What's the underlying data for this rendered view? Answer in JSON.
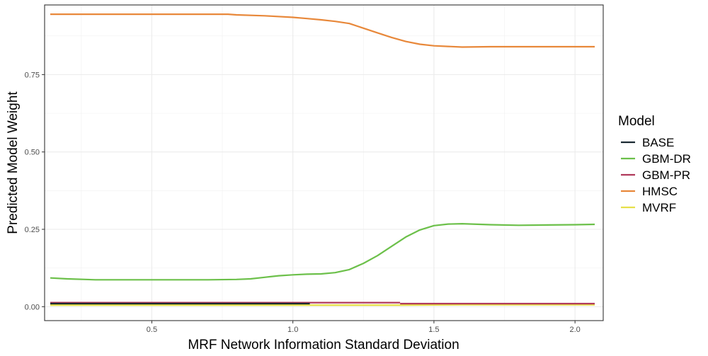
{
  "chart_data": {
    "type": "line",
    "title": "",
    "xlabel": "MRF Network Information Standard Deviation",
    "ylabel": "Predicted Model Weight",
    "xlim": [
      0.12,
      2.1
    ],
    "ylim": [
      -0.045,
      0.975
    ],
    "x_ticks": [
      0.5,
      1.0,
      1.5,
      2.0
    ],
    "x_tick_labels": [
      "0.5",
      "1.0",
      "1.5",
      "2.0"
    ],
    "y_ticks": [
      0.0,
      0.25,
      0.5,
      0.75
    ],
    "y_tick_labels": [
      "0.00",
      "0.25",
      "0.50",
      "0.75"
    ],
    "grid": true,
    "legend": {
      "title": "Model",
      "position": "right"
    },
    "series": [
      {
        "name": "BASE",
        "color": "#1b2a33",
        "points": [
          [
            0.14,
            0.01
          ],
          [
            0.5,
            0.01
          ],
          [
            0.8,
            0.01
          ],
          [
            1.06,
            0.01
          ]
        ]
      },
      {
        "name": "GBM-DR",
        "color": "#6cc04a",
        "points": [
          [
            0.14,
            0.093
          ],
          [
            0.2,
            0.09
          ],
          [
            0.3,
            0.087
          ],
          [
            0.4,
            0.087
          ],
          [
            0.5,
            0.087
          ],
          [
            0.6,
            0.087
          ],
          [
            0.7,
            0.087
          ],
          [
            0.8,
            0.088
          ],
          [
            0.85,
            0.09
          ],
          [
            0.9,
            0.095
          ],
          [
            0.95,
            0.1
          ],
          [
            1.0,
            0.103
          ],
          [
            1.05,
            0.105
          ],
          [
            1.1,
            0.106
          ],
          [
            1.15,
            0.11
          ],
          [
            1.2,
            0.12
          ],
          [
            1.25,
            0.14
          ],
          [
            1.3,
            0.165
          ],
          [
            1.35,
            0.195
          ],
          [
            1.4,
            0.225
          ],
          [
            1.45,
            0.248
          ],
          [
            1.5,
            0.262
          ],
          [
            1.55,
            0.267
          ],
          [
            1.6,
            0.268
          ],
          [
            1.7,
            0.265
          ],
          [
            1.8,
            0.263
          ],
          [
            1.9,
            0.264
          ],
          [
            2.0,
            0.265
          ],
          [
            2.07,
            0.266
          ]
        ]
      },
      {
        "name": "GBM-PR",
        "color": "#b03a5b",
        "points": [
          [
            0.14,
            0.013
          ],
          [
            0.5,
            0.013
          ],
          [
            1.0,
            0.013
          ],
          [
            1.38,
            0.013
          ]
        ]
      },
      {
        "name": "HMSC",
        "color": "#e8883a",
        "points": [
          [
            0.14,
            0.945
          ],
          [
            0.3,
            0.945
          ],
          [
            0.5,
            0.945
          ],
          [
            0.6,
            0.945
          ],
          [
            0.7,
            0.945
          ],
          [
            0.77,
            0.945
          ],
          [
            0.8,
            0.943
          ],
          [
            0.9,
            0.94
          ],
          [
            1.0,
            0.935
          ],
          [
            1.05,
            0.931
          ],
          [
            1.1,
            0.927
          ],
          [
            1.15,
            0.922
          ],
          [
            1.2,
            0.915
          ],
          [
            1.25,
            0.9
          ],
          [
            1.3,
            0.885
          ],
          [
            1.35,
            0.87
          ],
          [
            1.4,
            0.857
          ],
          [
            1.45,
            0.848
          ],
          [
            1.5,
            0.843
          ],
          [
            1.55,
            0.841
          ],
          [
            1.6,
            0.839
          ],
          [
            1.7,
            0.84
          ],
          [
            1.8,
            0.84
          ],
          [
            1.9,
            0.84
          ],
          [
            2.0,
            0.84
          ],
          [
            2.07,
            0.84
          ]
        ]
      },
      {
        "name": "MVRF",
        "color": "#e6e04a",
        "points": [
          [
            0.14,
            0.005
          ],
          [
            0.8,
            0.005
          ],
          [
            1.38,
            0.005
          ],
          [
            1.6,
            0.006
          ],
          [
            2.07,
            0.006
          ]
        ]
      }
    ],
    "overlay": [
      {
        "name": "GBM-PR",
        "points": [
          [
            1.38,
            0.01
          ],
          [
            2.07,
            0.01
          ]
        ]
      }
    ]
  }
}
